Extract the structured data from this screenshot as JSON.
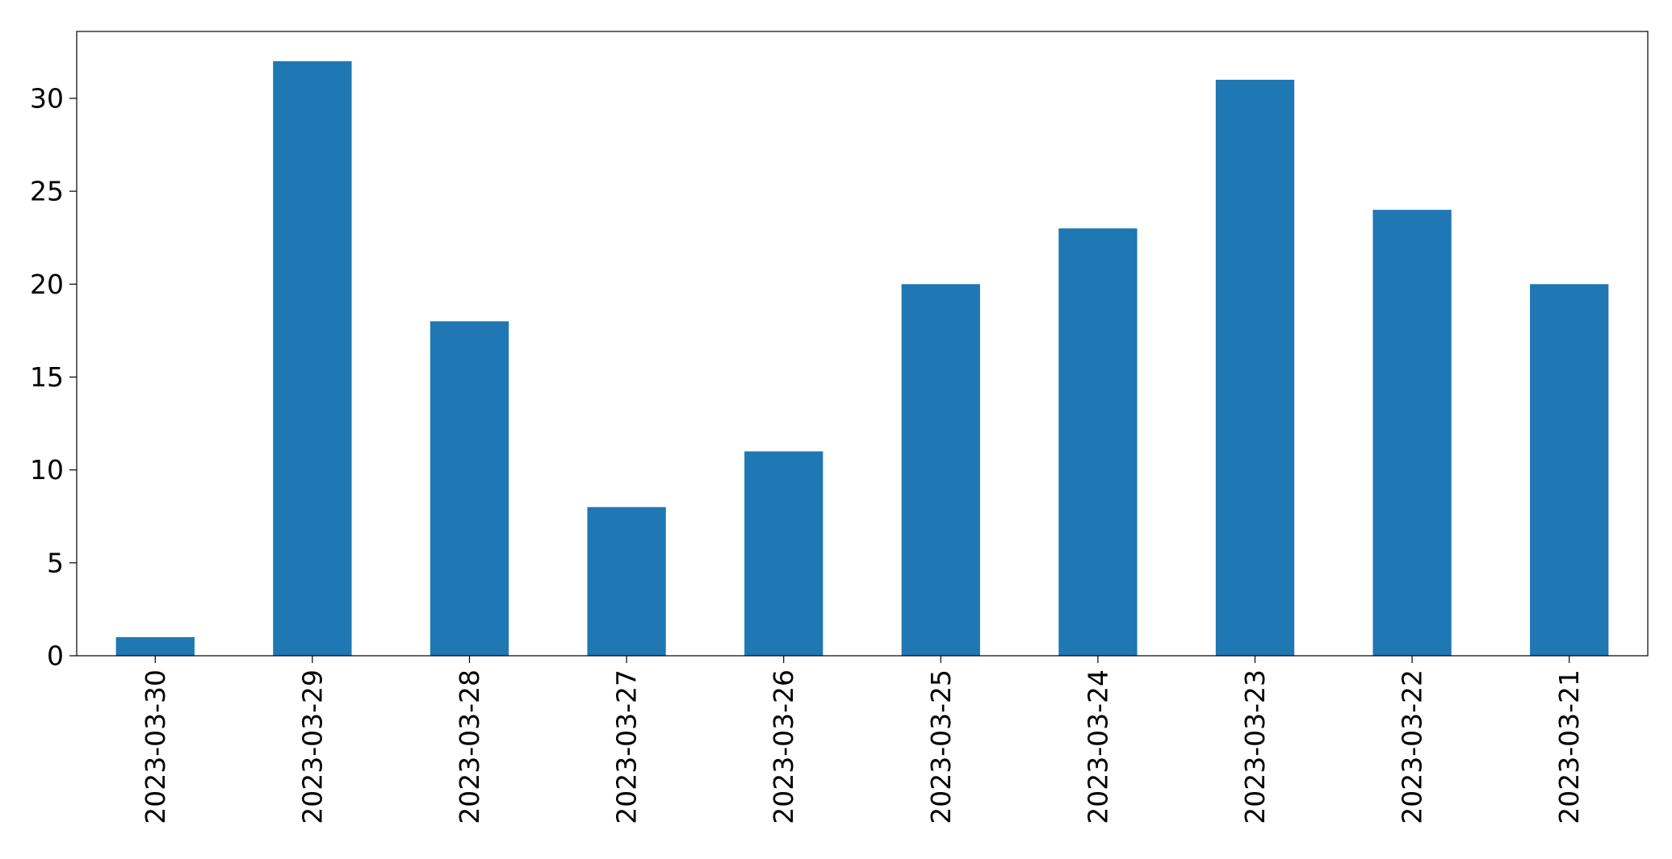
{
  "chart_data": {
    "type": "bar",
    "categories": [
      "2023-03-30",
      "2023-03-29",
      "2023-03-28",
      "2023-03-27",
      "2023-03-26",
      "2023-03-25",
      "2023-03-24",
      "2023-03-23",
      "2023-03-22",
      "2023-03-21"
    ],
    "values": [
      1,
      32,
      18,
      8,
      11,
      20,
      23,
      31,
      24,
      20
    ],
    "title": "",
    "xlabel": "",
    "ylabel": "",
    "ylim": [
      0,
      33.6
    ],
    "yticks": [
      "0",
      "5",
      "10",
      "15",
      "20",
      "25",
      "30"
    ],
    "grid": false,
    "legend": "none",
    "bar_color": "#1f77b4"
  }
}
